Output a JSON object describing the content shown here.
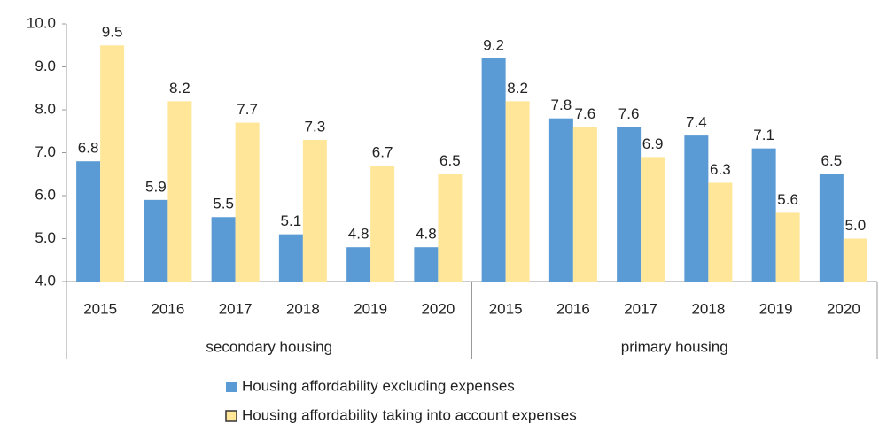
{
  "chart_data": {
    "type": "bar",
    "groups": [
      {
        "label": "secondary housing",
        "categories": [
          "2015",
          "2016",
          "2017",
          "2018",
          "2019",
          "2020"
        ]
      },
      {
        "label": "primary housing",
        "categories": [
          "2015",
          "2016",
          "2017",
          "2018",
          "2019",
          "2020"
        ]
      }
    ],
    "series": [
      {
        "name": "Housing affordability excluding expenses",
        "color": "#5b9bd5",
        "values": [
          6.8,
          5.9,
          5.5,
          5.1,
          4.8,
          4.8,
          9.2,
          7.8,
          7.6,
          7.4,
          7.1,
          6.5
        ],
        "value_labels": [
          "6.8",
          "5.9",
          "5.5",
          "5.1",
          "4.8",
          "4.8",
          "9.2",
          "7.8",
          "7.6",
          "7.4",
          "7.1",
          "6.5"
        ]
      },
      {
        "name": "Housing affordability taking into account expenses",
        "color": "#ffe699",
        "values": [
          9.5,
          8.2,
          7.7,
          7.3,
          6.7,
          6.5,
          8.2,
          7.6,
          6.9,
          6.3,
          5.6,
          5.0
        ],
        "value_labels": [
          "9.5",
          "8.2",
          "7.7",
          "7.3",
          "6.7",
          "6.5",
          "8.2",
          "7.6",
          "6.9",
          "6.3",
          "5.6",
          "5.0"
        ]
      }
    ],
    "ylim": [
      4,
      10
    ],
    "yticks": [
      {
        "value": 4,
        "label": "4.0"
      },
      {
        "value": 5,
        "label": "5.0"
      },
      {
        "value": 6,
        "label": "6.0"
      },
      {
        "value": 7,
        "label": "7.0"
      },
      {
        "value": 8,
        "label": "8.0"
      },
      {
        "value": 9,
        "label": "9.0"
      },
      {
        "value": 10,
        "label": "10.0"
      }
    ],
    "legend": "bottom"
  }
}
